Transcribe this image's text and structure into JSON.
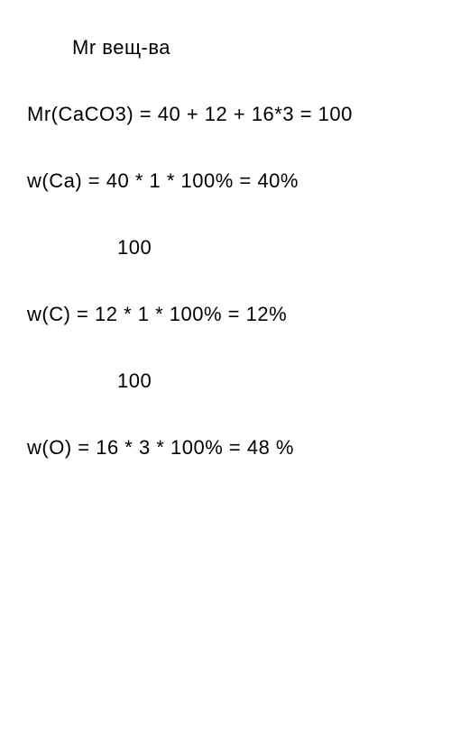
{
  "document": {
    "lines": [
      {
        "text": "Mr вещ-ва",
        "indent": "indent1",
        "fontsize": "22px"
      },
      {
        "text": "Mr(CaCO3) = 40 + 12 + 16*3 = 100",
        "indent": "",
        "fontsize": "22px"
      },
      {
        "text": "w(Ca) = 40 * 1      * 100% = 40%",
        "indent": "",
        "fontsize": "22px"
      },
      {
        "text": "100",
        "indent": "indent2",
        "fontsize": "22px"
      },
      {
        "text": "w(C) = 12 * 1       *  100% = 12%",
        "indent": "",
        "fontsize": "22px"
      },
      {
        "text": "100",
        "indent": "indent2",
        "fontsize": "22px"
      },
      {
        "text": "w(O) = 16 * 3       *  100% = 48 %",
        "indent": "",
        "fontsize": "22px"
      }
    ],
    "text_color": "#000000",
    "background_color": "#ffffff"
  }
}
